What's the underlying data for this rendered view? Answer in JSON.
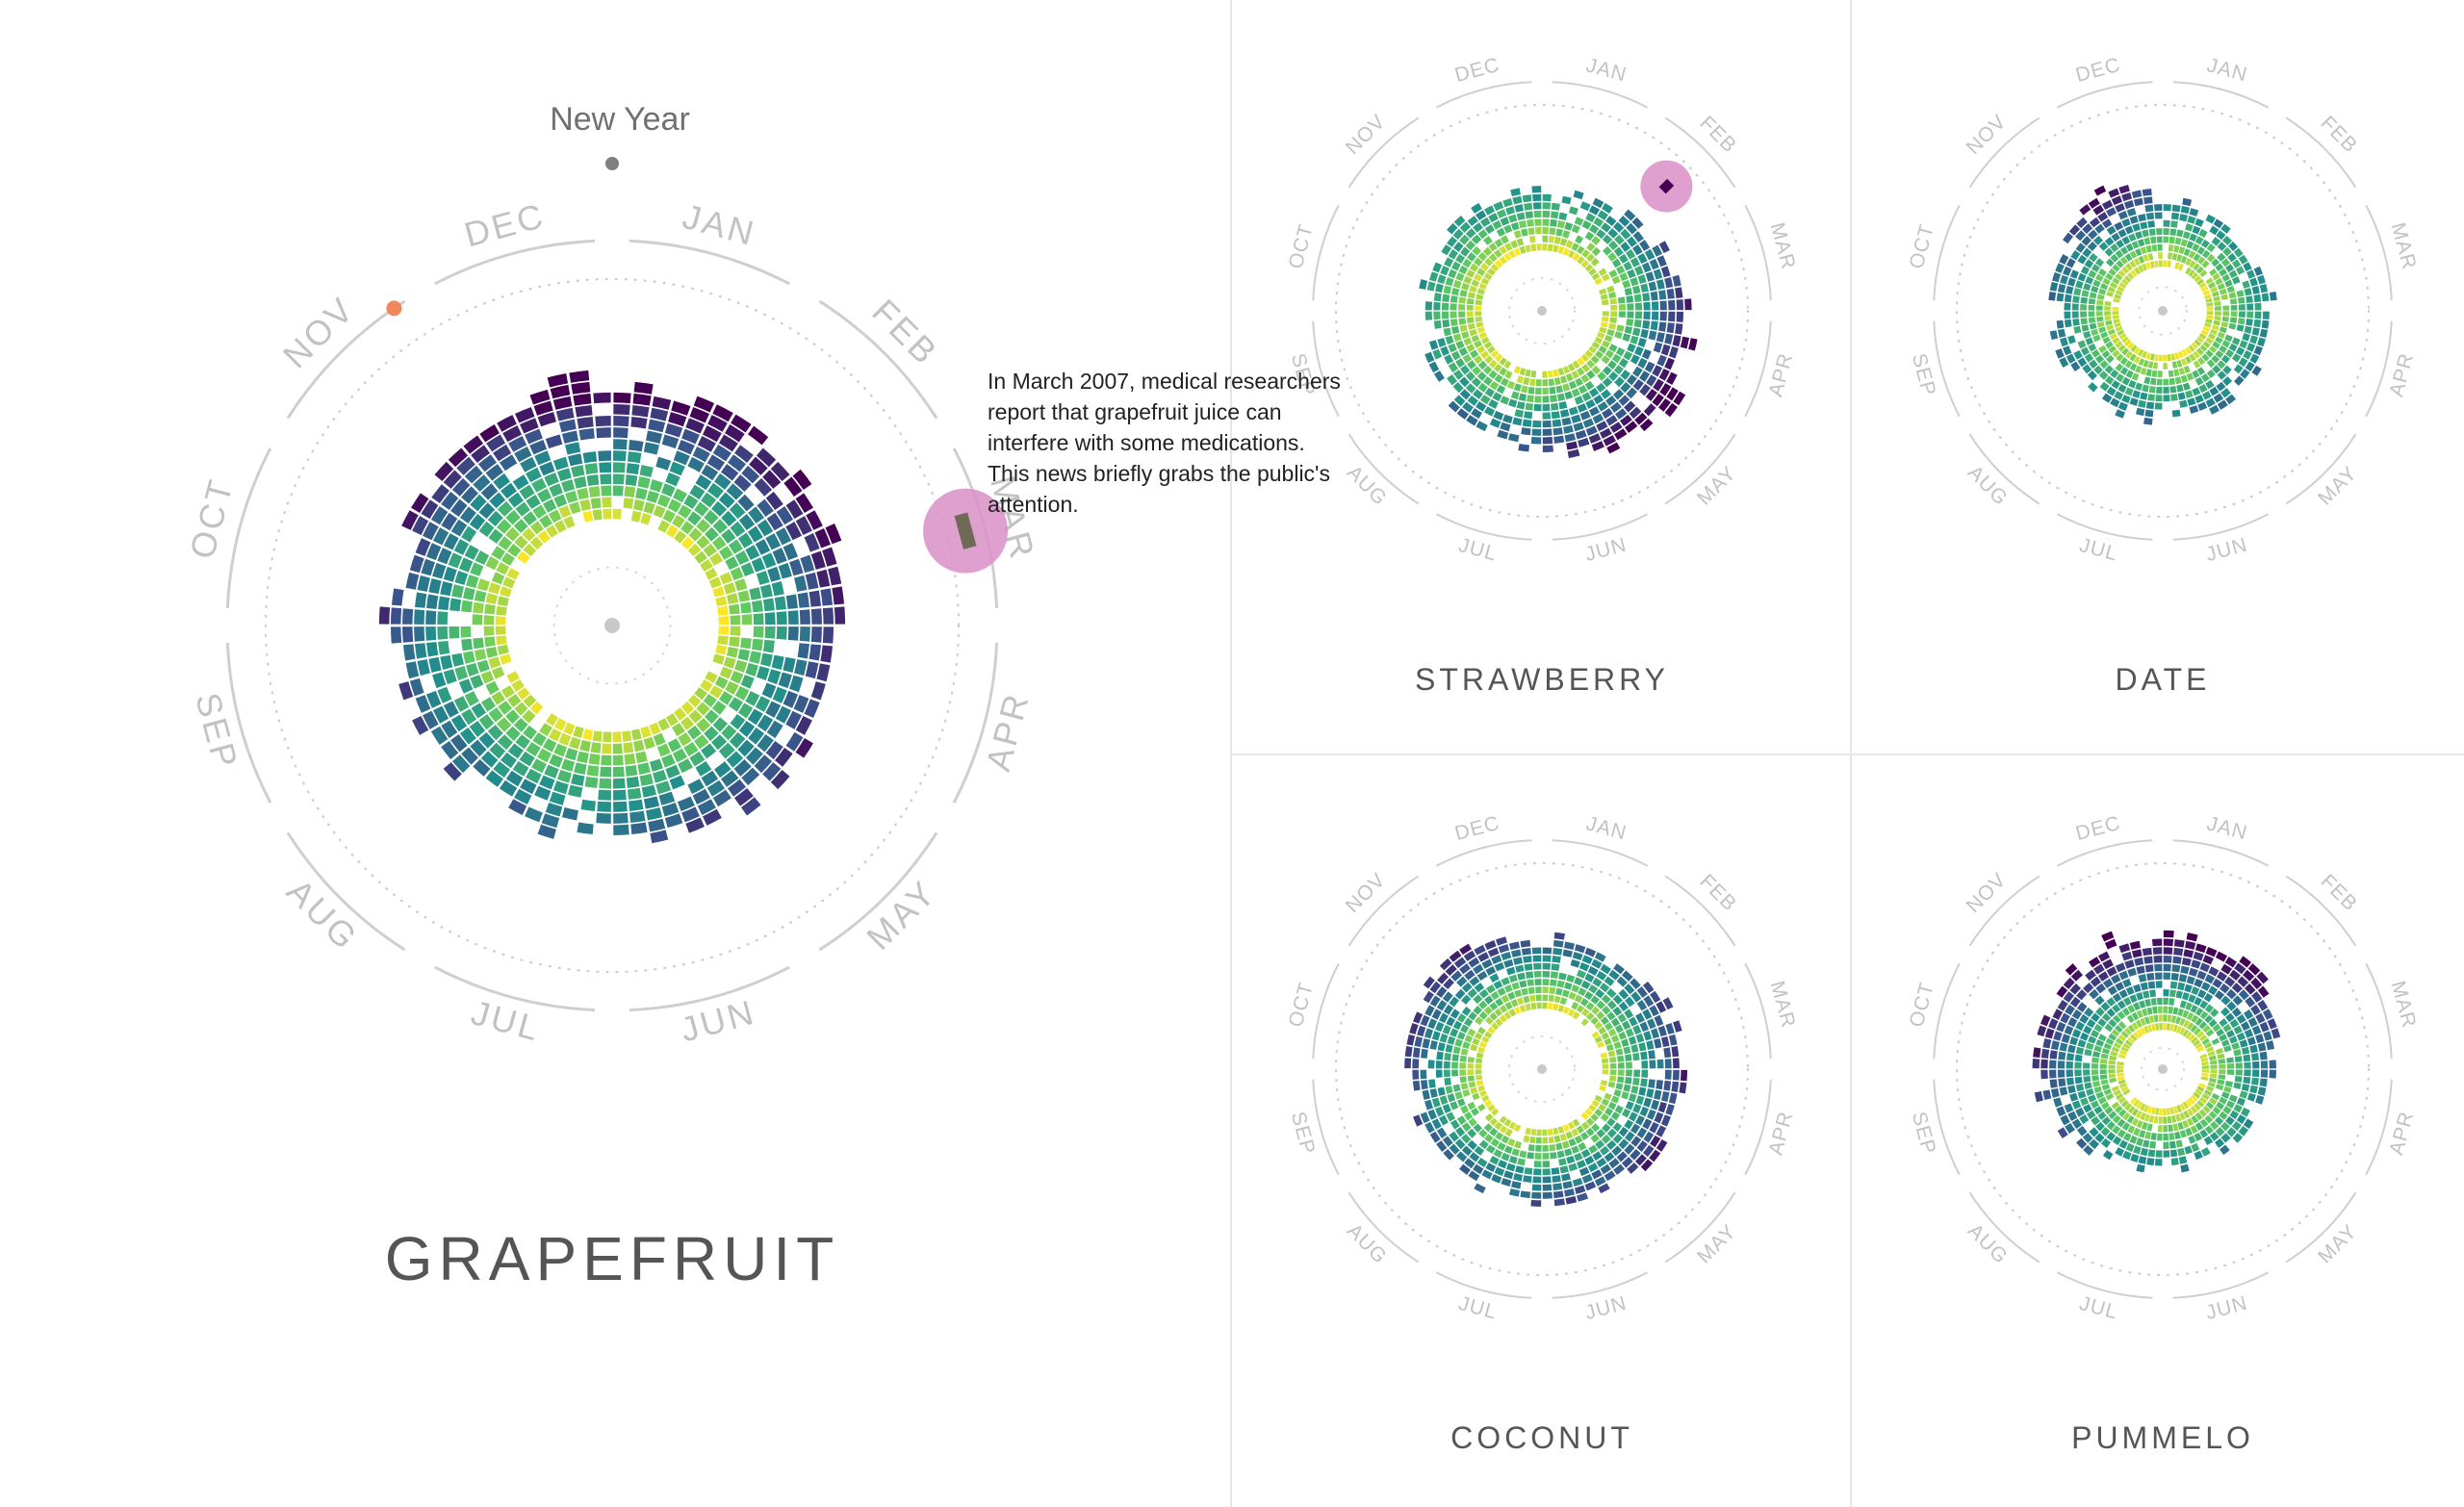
{
  "months": [
    "JAN",
    "FEB",
    "MAR",
    "APR",
    "MAY",
    "JUN",
    "JUL",
    "AUG",
    "SEP",
    "OCT",
    "NOV",
    "DEC"
  ],
  "new_year_label": "New Year",
  "annotation": {
    "text": "In March 2007, medical researchers report that grapefruit juice can interfere with some medications. This news briefly grabs the public's attention.",
    "highlight_color": "#d98ec7"
  },
  "marker_color": "#f0875c",
  "color_scale": [
    "#440154",
    "#3b528b",
    "#21918c",
    "#5ec962",
    "#fde725"
  ],
  "chart_data": [
    {
      "type": "radial-heatmap",
      "title": "GRAPEFRUIT",
      "angular_axis": "month of year (clockwise, New Year at top)",
      "radial_axis": "year",
      "color_meaning": "relative search interest",
      "monthly_peak": [
        1.0,
        0.95,
        0.9,
        0.8,
        0.7,
        0.6,
        0.5,
        0.5,
        0.55,
        0.65,
        0.8,
        0.95
      ],
      "highlight": {
        "month": "MAR",
        "year": 2007
      }
    },
    {
      "type": "radial-heatmap",
      "title": "STRAWBERRY",
      "angular_axis": "month of year",
      "radial_axis": "year",
      "monthly_peak": [
        0.35,
        0.4,
        0.6,
        0.85,
        1.0,
        0.95,
        0.7,
        0.45,
        0.3,
        0.25,
        0.25,
        0.3
      ],
      "highlight": {
        "month": "FEB"
      }
    },
    {
      "type": "radial-heatmap",
      "title": "DATE",
      "angular_axis": "month of year",
      "radial_axis": "year",
      "monthly_peak": [
        0.45,
        0.4,
        0.35,
        0.35,
        0.4,
        0.45,
        0.45,
        0.4,
        0.4,
        0.45,
        0.6,
        1.0
      ]
    },
    {
      "type": "radial-heatmap",
      "title": "COCONUT",
      "angular_axis": "month of year",
      "radial_axis": "year",
      "monthly_peak": [
        0.5,
        0.55,
        0.65,
        0.75,
        0.8,
        0.7,
        0.55,
        0.5,
        0.5,
        0.6,
        0.75,
        0.85
      ]
    },
    {
      "type": "radial-heatmap",
      "title": "PUMMELO",
      "angular_axis": "month of year",
      "radial_axis": "year",
      "monthly_peak": [
        1.0,
        0.95,
        0.7,
        0.45,
        0.35,
        0.3,
        0.3,
        0.35,
        0.55,
        0.7,
        0.8,
        0.95
      ]
    }
  ]
}
